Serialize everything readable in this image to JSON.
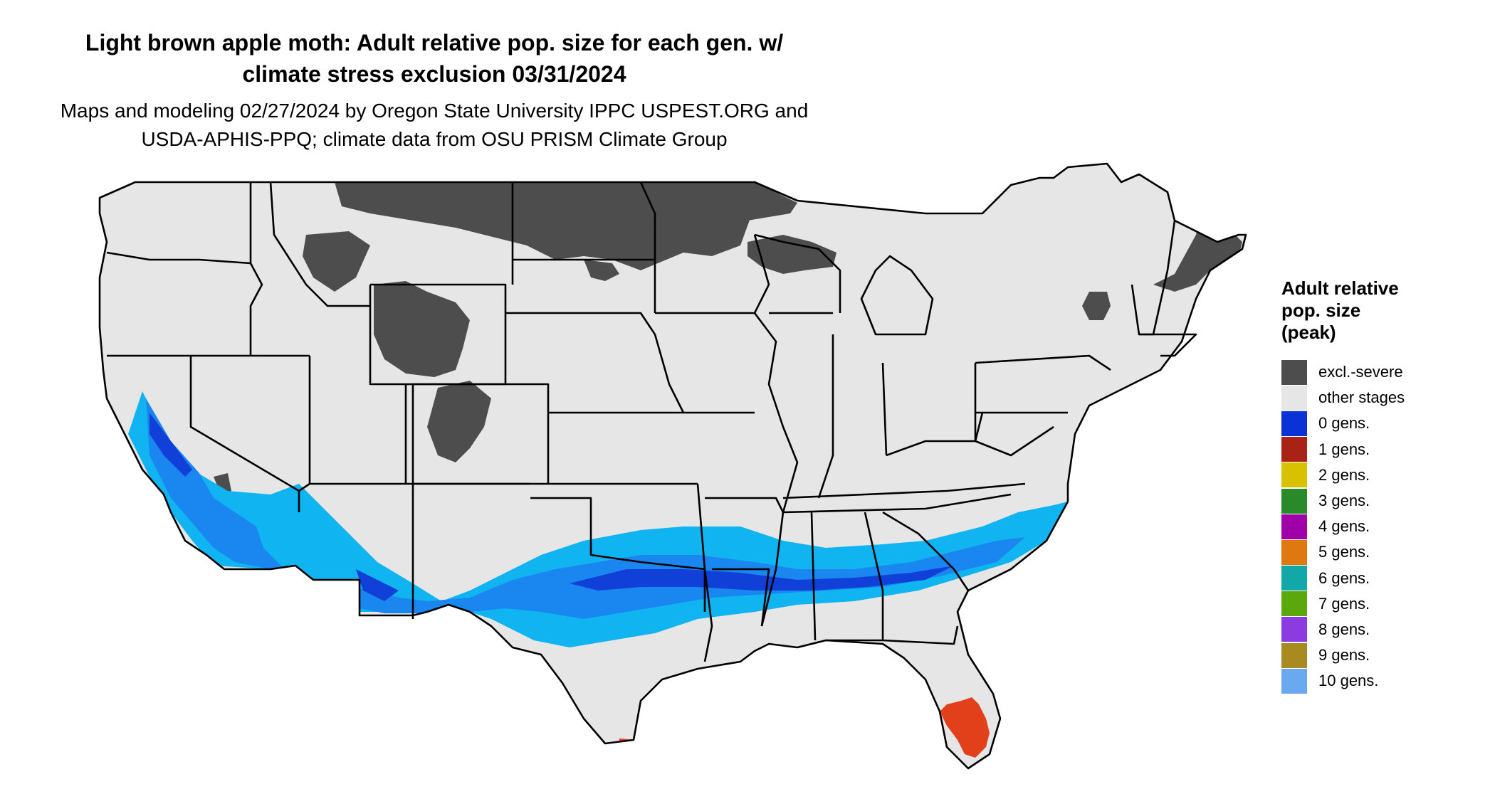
{
  "title_lines": [
    "Light brown apple moth: Adult relative pop. size for each gen. w/",
    "climate stress exclusion 03/31/2024"
  ],
  "subtitle_lines": [
    "Maps and modeling 02/27/2024 by Oregon State University IPPC USPEST.ORG and",
    "USDA-APHIS-PPQ; climate data from OSU PRISM Climate Group"
  ],
  "colors": {
    "land": "#e6e6e6",
    "excluded": "#4d4d4d",
    "blue_light": "#10b4f0",
    "blue_mid": "#1a86f0",
    "blue_dark": "#1040d8",
    "red_orange": "#e2401a",
    "border": "#000000"
  },
  "legend": {
    "title_lines": [
      "Adult relative",
      "pop. size",
      "(peak)"
    ],
    "items": [
      {
        "label": "excl.-severe",
        "color": "#4d4d4d"
      },
      {
        "label": "other stages",
        "color": "#e6e6e6"
      },
      {
        "label": "0 gens.",
        "color": "#0a32d6"
      },
      {
        "label": "1 gens.",
        "color": "#a82316"
      },
      {
        "label": "2 gens.",
        "color": "#d8c200"
      },
      {
        "label": "3 gens.",
        "color": "#2a8a2a"
      },
      {
        "label": "4 gens.",
        "color": "#a000a8"
      },
      {
        "label": "5 gens.",
        "color": "#e07810"
      },
      {
        "label": "6 gens.",
        "color": "#12a8a8"
      },
      {
        "label": "7 gens.",
        "color": "#5aa80c"
      },
      {
        "label": "8 gens.",
        "color": "#8a3ce0"
      },
      {
        "label": "9 gens.",
        "color": "#a88a20"
      },
      {
        "label": "10 gens.",
        "color": "#6aa8f0"
      }
    ]
  }
}
